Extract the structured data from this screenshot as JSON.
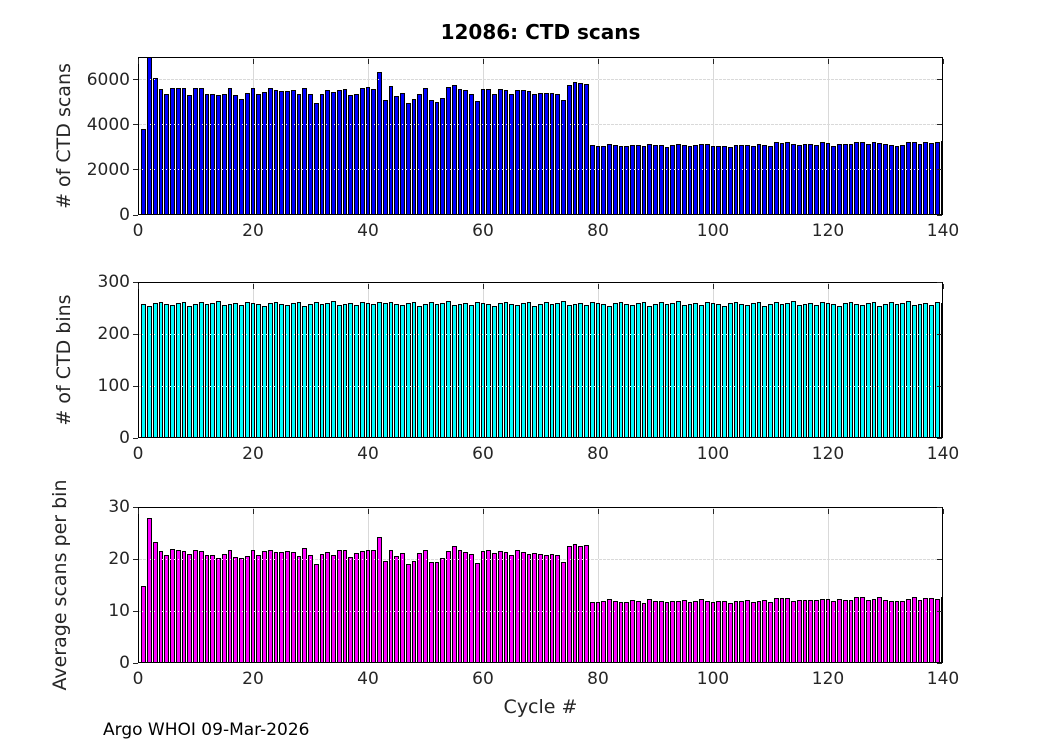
{
  "title": "12086: CTD scans",
  "footer": "Argo WHOI 09-Mar-2026",
  "xlabel": "Cycle #",
  "colors": {
    "scans_bar": "#0000FF",
    "bins_bar": "#00FFFF",
    "avg_bar": "#FF00FF",
    "bar_edge": "#000000",
    "grid": "#D9D9D9",
    "axis": "#000000",
    "tick_label": "#262626"
  },
  "chart_data": [
    {
      "type": "bar",
      "title": "12086: CTD scans",
      "ylabel": "# of CTD scans",
      "xlabel": "",
      "bar_color": "#0000FF",
      "x_start": 1,
      "xlim": [
        0,
        140
      ],
      "ylim": [
        0,
        7000
      ],
      "yticks": [
        0,
        2000,
        4000,
        6000
      ],
      "xticks": [
        0,
        20,
        40,
        60,
        80,
        100,
        120,
        140
      ],
      "grid": true,
      "values": [
        3800,
        7050,
        6050,
        5600,
        5350,
        5620,
        5640,
        5640,
        5300,
        5620,
        5630,
        5350,
        5350,
        5300,
        5350,
        5620,
        5300,
        5150,
        5400,
        5620,
        5350,
        5470,
        5640,
        5550,
        5500,
        5500,
        5550,
        5380,
        5620,
        5340,
        4980,
        5380,
        5550,
        5450,
        5550,
        5600,
        5300,
        5370,
        5620,
        5650,
        5600,
        6350,
        5100,
        5700,
        5280,
        5400,
        4950,
        5150,
        5350,
        5630,
        5100,
        5000,
        5200,
        5660,
        5750,
        5600,
        5550,
        5350,
        5050,
        5600,
        5600,
        5350,
        5600,
        5550,
        5350,
        5550,
        5550,
        5500,
        5350,
        5400,
        5420,
        5400,
        5380,
        5100,
        5750,
        5900,
        5850,
        5800,
        3100,
        3050,
        3050,
        3150,
        3100,
        3050,
        3050,
        3100,
        3100,
        3050,
        3150,
        3100,
        3100,
        3000,
        3100,
        3150,
        3100,
        3050,
        3100,
        3150,
        3150,
        3050,
        3050,
        3050,
        3000,
        3100,
        3100,
        3100,
        3050,
        3150,
        3100,
        3050,
        3250,
        3200,
        3250,
        3150,
        3100,
        3150,
        3150,
        3100,
        3250,
        3200,
        3050,
        3150,
        3150,
        3150,
        3250,
        3250,
        3150,
        3250,
        3200,
        3150,
        3100,
        3050,
        3100,
        3250,
        3250,
        3150,
        3250,
        3200,
        3250,
        3300
      ]
    },
    {
      "type": "bar",
      "title": "",
      "ylabel": "# of CTD bins",
      "xlabel": "",
      "bar_color": "#00FFFF",
      "x_start": 1,
      "xlim": [
        0,
        140
      ],
      "ylim": [
        0,
        300
      ],
      "yticks": [
        0,
        100,
        200,
        300
      ],
      "xticks": [
        0,
        20,
        40,
        60,
        80,
        100,
        120,
        140
      ],
      "grid": true,
      "values": [
        257,
        254,
        260,
        261,
        258,
        256,
        260,
        262,
        254,
        258,
        261,
        257,
        259,
        263,
        256,
        258,
        260,
        255,
        262,
        259,
        257,
        254,
        260,
        261,
        258,
        256,
        260,
        262,
        254,
        258,
        261,
        257,
        259,
        263,
        256,
        258,
        260,
        255,
        262,
        259,
        257,
        262,
        260,
        261,
        258,
        256,
        260,
        262,
        254,
        258,
        261,
        257,
        259,
        263,
        256,
        258,
        260,
        255,
        262,
        259,
        257,
        254,
        260,
        261,
        258,
        256,
        260,
        262,
        254,
        258,
        261,
        257,
        259,
        263,
        256,
        258,
        260,
        255,
        262,
        259,
        257,
        254,
        260,
        261,
        258,
        256,
        260,
        262,
        254,
        258,
        261,
        257,
        259,
        263,
        256,
        258,
        260,
        255,
        262,
        259,
        257,
        254,
        260,
        261,
        258,
        256,
        260,
        262,
        254,
        258,
        261,
        257,
        259,
        263,
        256,
        258,
        260,
        255,
        262,
        259,
        257,
        254,
        260,
        261,
        258,
        256,
        260,
        262,
        254,
        258,
        261,
        257,
        259,
        263,
        256,
        258,
        260,
        255,
        262,
        259
      ]
    },
    {
      "type": "bar",
      "title": "",
      "ylabel": "Average scans per bin",
      "xlabel": "Cycle #",
      "bar_color": "#FF00FF",
      "x_start": 1,
      "xlim": [
        0,
        140
      ],
      "ylim": [
        0,
        30
      ],
      "yticks": [
        0,
        10,
        20,
        30
      ],
      "xticks": [
        0,
        20,
        40,
        60,
        80,
        100,
        120,
        140
      ],
      "grid": true,
      "values": [
        14.8,
        27.8,
        23.3,
        21.5,
        20.7,
        22.0,
        21.7,
        21.5,
        20.9,
        21.8,
        21.6,
        20.8,
        20.7,
        20.2,
        20.9,
        21.8,
        20.4,
        20.2,
        20.6,
        21.7,
        20.8,
        21.5,
        21.7,
        21.3,
        21.3,
        21.5,
        21.3,
        20.5,
        22.1,
        20.7,
        19.1,
        20.9,
        21.4,
        20.7,
        21.7,
        21.7,
        20.4,
        21.1,
        21.5,
        21.8,
        21.8,
        24.2,
        19.6,
        21.8,
        20.5,
        21.1,
        19.0,
        19.7,
        21.1,
        21.8,
        19.5,
        19.5,
        20.1,
        21.5,
        22.5,
        21.7,
        21.3,
        21.0,
        19.3,
        21.6,
        21.8,
        21.1,
        21.5,
        21.3,
        20.7,
        21.7,
        21.3,
        21.0,
        21.1,
        20.9,
        20.8,
        21.0,
        20.8,
        19.4,
        22.5,
        22.9,
        22.5,
        22.7,
        11.8,
        11.8,
        11.9,
        12.4,
        11.9,
        11.7,
        11.8,
        12.1,
        11.9,
        11.6,
        12.4,
        12.0,
        11.9,
        11.7,
        12.0,
        12.0,
        12.1,
        11.8,
        11.9,
        12.4,
        12.0,
        11.8,
        11.9,
        12.0,
        11.5,
        11.9,
        12.0,
        12.1,
        11.7,
        12.0,
        12.2,
        11.8,
        12.5,
        12.5,
        12.5,
        12.0,
        12.1,
        12.2,
        12.1,
        12.2,
        12.4,
        12.4,
        11.9,
        12.4,
        12.1,
        12.1,
        12.6,
        12.7,
        12.1,
        12.4,
        12.6,
        12.2,
        11.9,
        11.9,
        12.0,
        12.4,
        12.7,
        12.2,
        12.5,
        12.5,
        12.4,
        12.7
      ]
    }
  ]
}
